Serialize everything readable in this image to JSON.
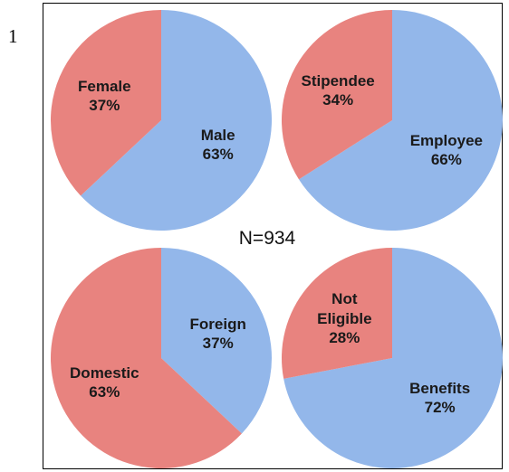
{
  "figure_label": "1",
  "annotation": "N=934",
  "chart_data": [
    {
      "type": "pie",
      "categories": [
        "Male",
        "Female"
      ],
      "values": [
        63,
        37
      ],
      "value_labels": [
        "63%",
        "37%"
      ],
      "colors": [
        "#93b7ea",
        "#e8837f"
      ]
    },
    {
      "type": "pie",
      "categories": [
        "Employee",
        "Stipendee"
      ],
      "values": [
        66,
        34
      ],
      "value_labels": [
        "66%",
        "34%"
      ],
      "colors": [
        "#93b7ea",
        "#e8837f"
      ]
    },
    {
      "type": "pie",
      "categories": [
        "Foreign",
        "Domestic"
      ],
      "values": [
        37,
        63
      ],
      "value_labels": [
        "37%",
        "63%"
      ],
      "colors": [
        "#93b7ea",
        "#e8837f"
      ]
    },
    {
      "type": "pie",
      "categories": [
        "Benefits",
        "Not Eligible"
      ],
      "values": [
        72,
        28
      ],
      "value_labels": [
        "72%",
        "28%"
      ],
      "colors": [
        "#93b7ea",
        "#e8837f"
      ]
    }
  ]
}
